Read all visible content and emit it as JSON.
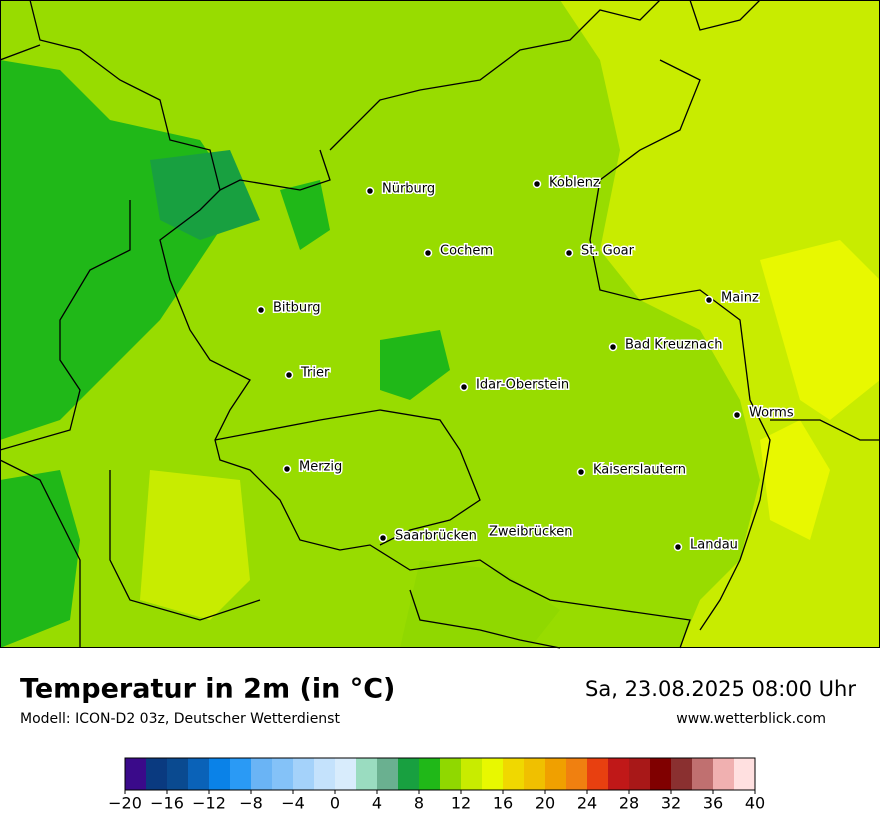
{
  "header": {
    "title": "Temperatur in 2m (in °C)",
    "subtitle": "Modell: ICON-D2 03z, Deutscher Wetterdienst",
    "datetime": "Sa, 23.08.2025 08:00 Uhr",
    "website": "www.wetterblick.com"
  },
  "cities": [
    "Nürburg",
    "Koblenz",
    "Cochem",
    "St. Goar",
    "Bitburg",
    "Mainz",
    "Bad Kreuznach",
    "Trier",
    "Idar-Oberstein",
    "Worms",
    "Merzig",
    "Kaiserslautern",
    "Saarbrücken",
    "Zweibrücken",
    "Landau"
  ],
  "colorbar": {
    "bins": [
      -20,
      -18,
      -16,
      -14,
      -12,
      -10,
      -8,
      -6,
      -4,
      -2,
      0,
      2,
      4,
      6,
      8,
      10,
      12,
      14,
      16,
      18,
      20,
      22,
      24,
      26,
      28,
      30,
      32,
      34,
      36,
      38,
      40
    ],
    "colors": [
      "#3a0a8a",
      "#0a3a80",
      "#0a4a90",
      "#0a62b8",
      "#0a82e8",
      "#2a9af5",
      "#6ab4f5",
      "#84c2f8",
      "#a4d2fa",
      "#c4e2fc",
      "#d8ecfc",
      "#9adcc0",
      "#6ab090",
      "#18a040",
      "#20b818",
      "#90d800",
      "#c8ec00",
      "#e8f800",
      "#f0d800",
      "#f0c000",
      "#f0a000",
      "#f08010",
      "#e84010",
      "#c01818",
      "#a81818",
      "#800000",
      "#8a3030",
      "#c07070",
      "#f0b0b0",
      "#ffe0e0"
    ],
    "ticks": [
      {
        "value": -20,
        "label": "−20"
      },
      {
        "value": -16,
        "label": "−16"
      },
      {
        "value": -12,
        "label": "−12"
      },
      {
        "value": -8,
        "label": "−8"
      },
      {
        "value": -4,
        "label": "−4"
      },
      0,
      4,
      8,
      12,
      16,
      20,
      24,
      28,
      32,
      36,
      40
    ]
  }
}
